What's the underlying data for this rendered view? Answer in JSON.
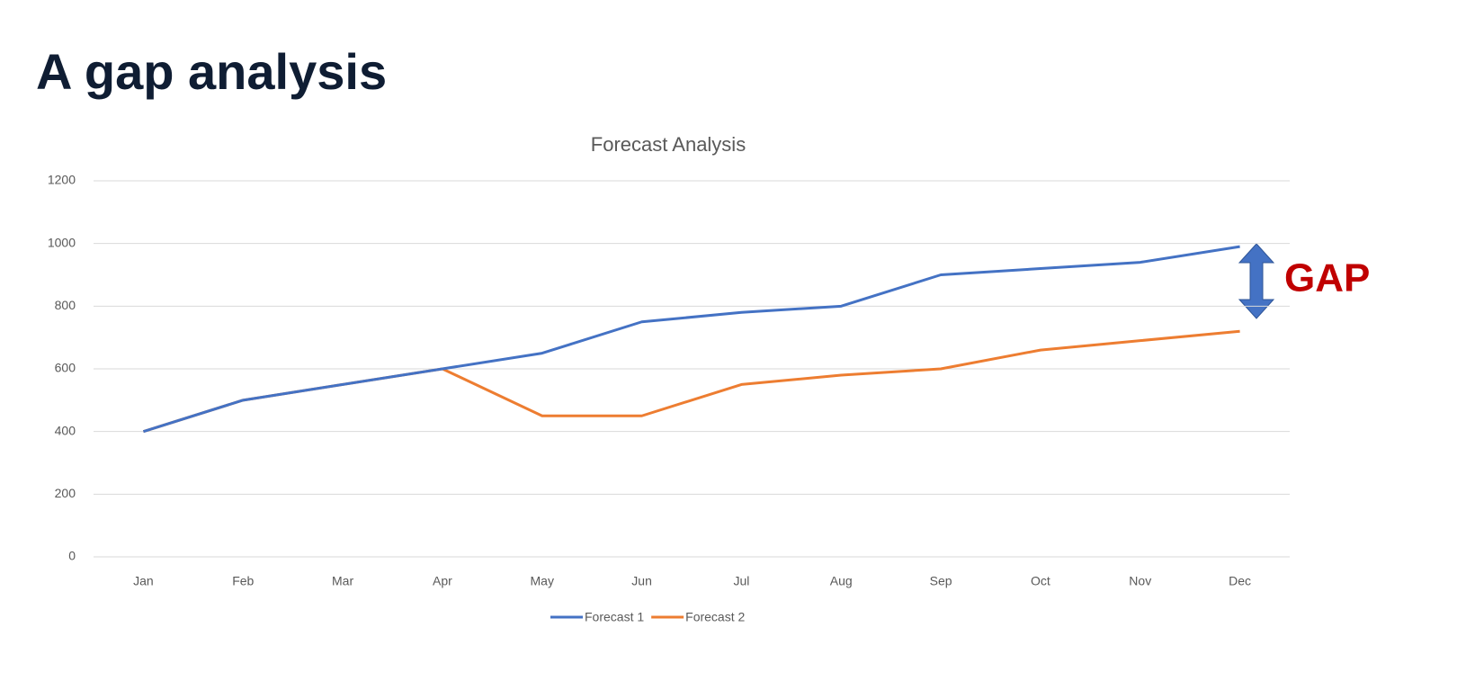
{
  "heading": "A gap analysis",
  "chart_data": {
    "type": "line",
    "title": "Forecast Analysis",
    "categories": [
      "Jan",
      "Feb",
      "Mar",
      "Apr",
      "May",
      "Jun",
      "Jul",
      "Aug",
      "Sep",
      "Oct",
      "Nov",
      "Dec"
    ],
    "series": [
      {
        "name": "Forecast 1",
        "color": "#4472c4",
        "values": [
          400,
          500,
          550,
          600,
          650,
          750,
          780,
          800,
          900,
          920,
          940,
          990
        ]
      },
      {
        "name": "Forecast 2",
        "color": "#ed7d31",
        "values": [
          400,
          500,
          550,
          600,
          450,
          450,
          550,
          580,
          600,
          660,
          690,
          720
        ]
      }
    ],
    "ylim": [
      0,
      1200
    ],
    "yticks": [
      0,
      200,
      400,
      600,
      800,
      1000,
      1200
    ],
    "grid": true,
    "legend": "bottom",
    "annotation": "GAP"
  }
}
